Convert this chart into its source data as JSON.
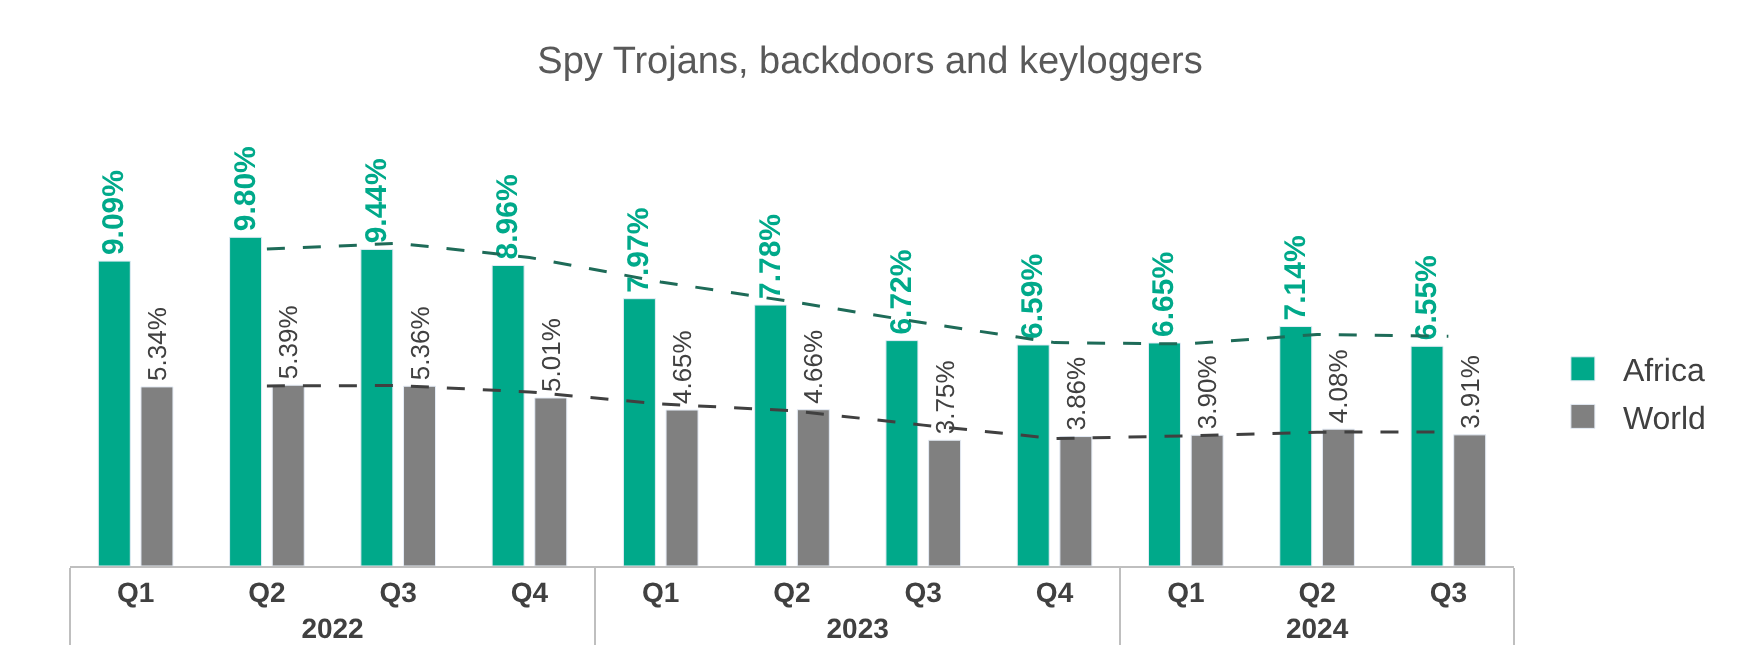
{
  "chart_data": {
    "type": "bar",
    "title": "Spy Trojans, backdoors and keyloggers",
    "categories": [
      "Q1",
      "Q2",
      "Q3",
      "Q4",
      "Q1",
      "Q2",
      "Q3",
      "Q4",
      "Q1",
      "Q2",
      "Q3"
    ],
    "annotations": [
      "2022",
      "2023",
      "2024"
    ],
    "tick_labels": "x",
    "legend": "right",
    "series": [
      {
        "name": "Africa",
        "color": "#00a98a",
        "values": [
          9.09,
          9.8,
          9.44,
          8.96,
          7.97,
          7.78,
          6.72,
          6.59,
          6.65,
          7.14,
          6.55
        ],
        "value_labels": [
          "9.09%",
          "9.80%",
          "9.44%",
          "8.96%",
          "7.97%",
          "7.78%",
          "6.72%",
          "6.59%",
          "6.65%",
          "7.14%",
          "6.55%"
        ]
      },
      {
        "name": "World",
        "color": "#808080",
        "values": [
          5.34,
          5.39,
          5.36,
          5.01,
          4.65,
          4.66,
          3.75,
          3.86,
          3.9,
          4.08,
          3.91
        ],
        "value_labels": [
          "5.34%",
          "5.39%",
          "5.36%",
          "5.01%",
          "4.65%",
          "4.66%",
          "3.75%",
          "3.86%",
          "3.90%",
          "4.08%",
          "3.91%"
        ]
      },
      {
        "type": "line",
        "color": "#1e6b58",
        "line_style": "dashed",
        "marker": "none",
        "values": [
          null,
          9.45,
          9.62,
          9.2,
          8.47,
          7.88,
          7.25,
          6.66,
          6.62,
          6.9,
          6.85
        ]
      },
      {
        "type": "line",
        "color": "#404040",
        "line_style": "dashed",
        "marker": "none",
        "values": [
          null,
          5.37,
          5.38,
          5.19,
          4.83,
          4.63,
          4.2,
          3.8,
          3.88,
          3.99,
          4.0
        ]
      }
    ]
  }
}
